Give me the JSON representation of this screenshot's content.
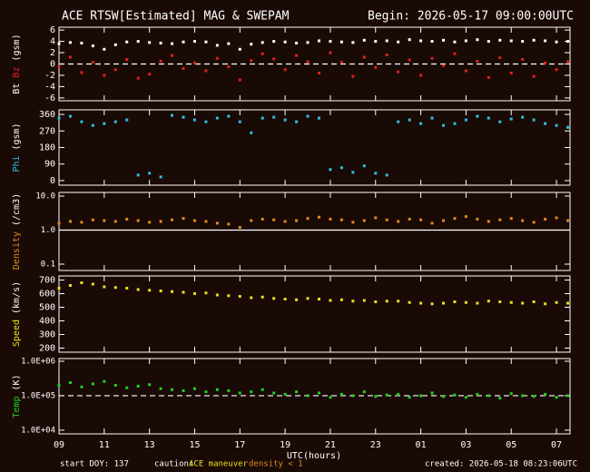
{
  "header": {
    "title": "ACE RTSW[Estimated] MAG & SWEPAM",
    "begin": "Begin: 2026-05-17 09:00:00UTC"
  },
  "footer": {
    "start": "start DOY: 137",
    "caution": "caution:",
    "maneuver": "ACE maneuver",
    "density": "density < 1",
    "created": "created: 2026-05-18 08:23:06UTC"
  },
  "chart_data": [
    {
      "type": "scatter",
      "ylabel": "(gsm)",
      "ylim": [
        -6.5,
        6.5
      ],
      "yticks": [
        -6,
        -4,
        -2,
        0,
        2,
        4,
        6
      ],
      "ref_lines": [
        {
          "value": 0,
          "dashed": true
        }
      ],
      "x": [
        0,
        0.5,
        1,
        1.5,
        2,
        2.5,
        3,
        3.5,
        4,
        4.5,
        5,
        5.5,
        6,
        6.5,
        7,
        7.5,
        8,
        8.5,
        9,
        9.5,
        10,
        10.5,
        11,
        11.5,
        12,
        12.5,
        13,
        13.5,
        14,
        14.5,
        15,
        15.5,
        16,
        16.5,
        17,
        17.5,
        18,
        18.5,
        19,
        19.5,
        20,
        20.5,
        21,
        21.5,
        22,
        22.5
      ],
      "series": [
        {
          "name": "Bt",
          "color": "#ffffff",
          "values": [
            3.6,
            3.8,
            3.7,
            3.2,
            2.6,
            3.4,
            3.9,
            4.0,
            3.8,
            3.7,
            3.6,
            3.9,
            4.0,
            3.9,
            3.3,
            3.6,
            2.6,
            3.5,
            3.8,
            4.0,
            3.9,
            3.7,
            3.8,
            4.1,
            4.0,
            3.9,
            3.8,
            4.2,
            4.0,
            4.1,
            3.9,
            4.3,
            4.1,
            4.0,
            4.2,
            3.9,
            4.1,
            4.3,
            4.0,
            4.2,
            4.1,
            4.0,
            4.2,
            4.1,
            3.9,
            4.0
          ]
        },
        {
          "name": "Bz",
          "color": "#e02020",
          "values": [
            -0.5,
            1.2,
            -1.5,
            0.3,
            -2.0,
            -1.0,
            0.8,
            -2.5,
            -1.8,
            0.5,
            1.5,
            -0.8,
            0.2,
            -1.2,
            1.0,
            -0.5,
            -2.8,
            0.6,
            1.8,
            0.9,
            -1.0,
            1.5,
            0.4,
            -1.6,
            2.0,
            0.3,
            -2.2,
            1.2,
            -0.6,
            1.6,
            -1.4,
            0.7,
            -2.0,
            1.0,
            -0.3,
            1.8,
            -1.2,
            0.5,
            -2.4,
            1.1,
            -1.6,
            0.8,
            -2.2,
            0.2,
            -1.0,
            0.4
          ]
        }
      ]
    },
    {
      "type": "scatter",
      "ylabel": "(gsm)",
      "ylim": [
        -25,
        385
      ],
      "yticks": [
        0,
        90,
        180,
        270,
        360
      ],
      "x": [
        0,
        0.5,
        1,
        1.5,
        2,
        2.5,
        3,
        3.5,
        4,
        4.5,
        5,
        5.5,
        6,
        6.5,
        7,
        7.5,
        8,
        8.5,
        9,
        9.5,
        10,
        10.5,
        11,
        11.5,
        12,
        12.5,
        13,
        13.5,
        14,
        14.5,
        15,
        15.5,
        16,
        16.5,
        17,
        17.5,
        18,
        18.5,
        19,
        19.5,
        20,
        20.5,
        21,
        21.5,
        22,
        22.5
      ],
      "series": [
        {
          "name": "Phi",
          "color": "#30c0e0",
          "values": [
            340,
            350,
            320,
            300,
            310,
            320,
            330,
            30,
            40,
            20,
            355,
            345,
            330,
            320,
            340,
            350,
            320,
            260,
            340,
            345,
            330,
            320,
            350,
            340,
            60,
            70,
            45,
            80,
            40,
            30,
            320,
            330,
            310,
            340,
            300,
            310,
            330,
            350,
            340,
            320,
            335,
            345,
            330,
            310,
            300,
            290
          ]
        }
      ]
    },
    {
      "type": "scatter",
      "ylabel": "(/cm3)",
      "log": true,
      "ylim": [
        0.065,
        12.8
      ],
      "yticks": [
        {
          "value": 0.1,
          "label": "0.1"
        },
        {
          "value": 1,
          "label": "1.0"
        },
        {
          "value": 10,
          "label": "10.0"
        }
      ],
      "ref_lines": [
        {
          "value": 1,
          "dashed": false
        }
      ],
      "x": [
        0,
        0.5,
        1,
        1.5,
        2,
        2.5,
        3,
        3.5,
        4,
        4.5,
        5,
        5.5,
        6,
        6.5,
        7,
        7.5,
        8,
        8.5,
        9,
        9.5,
        10,
        10.5,
        11,
        11.5,
        12,
        12.5,
        13,
        13.5,
        14,
        14.5,
        15,
        15.5,
        16,
        16.5,
        17,
        17.5,
        18,
        18.5,
        19,
        19.5,
        20,
        20.5,
        21,
        21.5,
        22,
        22.5
      ],
      "series": [
        {
          "name": "Density",
          "color": "#e08a20",
          "values": [
            1.6,
            1.8,
            1.7,
            2.0,
            1.9,
            1.8,
            2.1,
            1.9,
            1.7,
            1.8,
            2.0,
            2.2,
            1.9,
            1.8,
            1.6,
            1.5,
            1.2,
            1.9,
            2.1,
            2.0,
            1.8,
            1.9,
            2.2,
            2.4,
            2.1,
            2.0,
            1.7,
            1.9,
            2.3,
            2.0,
            1.8,
            2.1,
            2.0,
            1.6,
            1.9,
            2.2,
            2.5,
            2.1,
            1.8,
            2.0,
            2.2,
            1.9,
            1.7,
            2.1,
            2.3,
            1.9
          ]
        }
      ]
    },
    {
      "type": "scatter",
      "ylabel": "(km/s)",
      "ylim": [
        170,
        730
      ],
      "yticks": [
        200,
        300,
        400,
        500,
        600,
        700
      ],
      "x": [
        0,
        0.5,
        1,
        1.5,
        2,
        2.5,
        3,
        3.5,
        4,
        4.5,
        5,
        5.5,
        6,
        6.5,
        7,
        7.5,
        8,
        8.5,
        9,
        9.5,
        10,
        10.5,
        11,
        11.5,
        12,
        12.5,
        13,
        13.5,
        14,
        14.5,
        15,
        15.5,
        16,
        16.5,
        17,
        17.5,
        18,
        18.5,
        19,
        19.5,
        20,
        20.5,
        21,
        21.5,
        22,
        22.5
      ],
      "series": [
        {
          "name": "Speed",
          "color": "#e8e020",
          "values": [
            640,
            660,
            680,
            670,
            650,
            645,
            640,
            630,
            625,
            620,
            615,
            610,
            600,
            605,
            590,
            585,
            580,
            570,
            575,
            565,
            560,
            555,
            565,
            560,
            550,
            555,
            545,
            550,
            540,
            545,
            545,
            535,
            530,
            525,
            530,
            540,
            535,
            530,
            545,
            540,
            535,
            530,
            540,
            525,
            535,
            530
          ]
        }
      ]
    },
    {
      "type": "scatter",
      "ylabel": "(K)",
      "log": true,
      "ylim": [
        7800,
        1200000
      ],
      "yticks": [
        {
          "value": 10000,
          "label": "1.0E+04"
        },
        {
          "value": 100000,
          "label": "1.0E+05"
        },
        {
          "value": 1000000,
          "label": "1.0E+06"
        }
      ],
      "ref_lines": [
        {
          "value": 100000,
          "dashed": true
        }
      ],
      "xlabel": "UTC(hours)",
      "xlim": [
        0,
        22.6
      ],
      "xticks": [
        {
          "value": 0,
          "label": "09"
        },
        {
          "value": 2,
          "label": "11"
        },
        {
          "value": 4,
          "label": "13"
        },
        {
          "value": 6,
          "label": "15"
        },
        {
          "value": 8,
          "label": "17"
        },
        {
          "value": 10,
          "label": "19"
        },
        {
          "value": 12,
          "label": "21"
        },
        {
          "value": 14,
          "label": "23"
        },
        {
          "value": 16,
          "label": "01"
        },
        {
          "value": 18,
          "label": "03"
        },
        {
          "value": 20,
          "label": "05"
        },
        {
          "value": 22,
          "label": "07"
        }
      ],
      "x": [
        0,
        0.5,
        1,
        1.5,
        2,
        2.5,
        3,
        3.5,
        4,
        4.5,
        5,
        5.5,
        6,
        6.5,
        7,
        7.5,
        8,
        8.5,
        9,
        9.5,
        10,
        10.5,
        11,
        11.5,
        12,
        12.5,
        13,
        13.5,
        14,
        14.5,
        15,
        15.5,
        16,
        16.5,
        17,
        17.5,
        18,
        18.5,
        19,
        19.5,
        20,
        20.5,
        21,
        21.5,
        22,
        22.5
      ],
      "series": [
        {
          "name": "Temp",
          "color": "#20d020",
          "values": [
            200000,
            240000,
            180000,
            220000,
            260000,
            200000,
            170000,
            190000,
            210000,
            160000,
            150000,
            140000,
            160000,
            130000,
            150000,
            140000,
            120000,
            130000,
            150000,
            120000,
            110000,
            130000,
            100000,
            120000,
            90000,
            110000,
            100000,
            130000,
            95000,
            105000,
            110000,
            90000,
            100000,
            120000,
            95000,
            105000,
            90000,
            110000,
            100000,
            85000,
            115000,
            100000,
            95000,
            110000,
            90000,
            100000
          ]
        }
      ]
    }
  ]
}
